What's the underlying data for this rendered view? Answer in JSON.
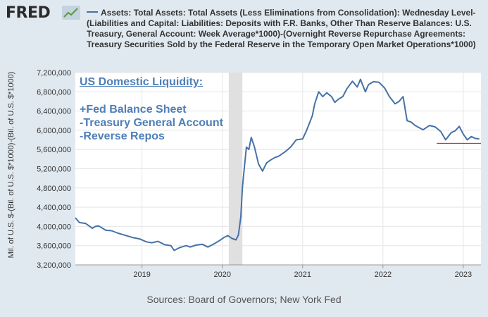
{
  "header": {
    "logo_text": "FRED",
    "logo_icon": "chart-line-icon",
    "legend_label": "Assets: Total Assets: Total Assets (Less Eliminations from Consolidation): Wednesday Level-(Liabilities and Capital: Liabilities: Deposits with F.R. Banks, Other Than Reserve Balances: U.S. Treasury, General Account: Week Average*1000)-(Overnight Reverse Repurchase Agreements: Treasury Securities Sold by the Federal Reserve in the Temporary Open Market Operations*1000)"
  },
  "annotations": {
    "title": "US Domestic Liquidity:",
    "line1": "+Fed Balance Sheet",
    "line2": "-Treasury General Account",
    "line3": "-Reverse Repos"
  },
  "footer": {
    "sources": "Sources: Board of Governors; New York Fed"
  },
  "colors": {
    "series": "#4572a7",
    "recession": "#e0e0e0",
    "reference_line": "#cc0000",
    "annotation": "#4e7fb8"
  },
  "chart_data": {
    "type": "line",
    "ylabel": "Mil. of U.S. $-(Bil. of U.S. $*1000)-(Bil. of U.S. $*1000)",
    "xlim": [
      2018.17,
      2023.22
    ],
    "ylim": [
      3200000,
      7200000
    ],
    "yticks": [
      3200000,
      3600000,
      4000000,
      4400000,
      4800000,
      5200000,
      5600000,
      6000000,
      6400000,
      6800000,
      7200000
    ],
    "ytick_labels": [
      "3,200,000",
      "3,600,000",
      "4,000,000",
      "4,400,000",
      "4,800,000",
      "5,200,000",
      "5,600,000",
      "6,000,000",
      "6,400,000",
      "6,800,000",
      "7,200,000"
    ],
    "xticks": [
      2019,
      2020,
      2021,
      2022,
      2023
    ],
    "xtick_labels": [
      "2019",
      "2020",
      "2021",
      "2022",
      "2023"
    ],
    "shaded_band": [
      2020.08,
      2020.25
    ],
    "reference_line": {
      "y": 5730000,
      "x_start": 2022.67,
      "x_end": 2023.22
    },
    "series": [
      {
        "x": [
          2018.17,
          2018.22,
          2018.3,
          2018.38,
          2018.42,
          2018.46,
          2018.55,
          2018.62,
          2018.7,
          2018.78,
          2018.88,
          2018.97,
          2019.05,
          2019.12,
          2019.2,
          2019.28,
          2019.36,
          2019.4,
          2019.47,
          2019.55,
          2019.6,
          2019.67,
          2019.75,
          2019.82,
          2019.9,
          2019.97,
          2020.02,
          2020.07,
          2020.12,
          2020.17,
          2020.2,
          2020.23,
          2020.25,
          2020.27,
          2020.3,
          2020.33,
          2020.36,
          2020.4,
          2020.45,
          2020.5,
          2020.55,
          2020.6,
          2020.65,
          2020.7,
          2020.78,
          2020.85,
          2020.92,
          2021.0,
          2021.05,
          2021.12,
          2021.15,
          2021.2,
          2021.25,
          2021.3,
          2021.36,
          2021.4,
          2021.45,
          2021.5,
          2021.55,
          2021.62,
          2021.68,
          2021.72,
          2021.78,
          2021.82,
          2021.88,
          2021.95,
          2022.02,
          2022.08,
          2022.15,
          2022.2,
          2022.25,
          2022.3,
          2022.35,
          2022.4,
          2022.5,
          2022.58,
          2022.65,
          2022.72,
          2022.78,
          2022.85,
          2022.9,
          2022.95,
          2023.0,
          2023.05,
          2023.1,
          2023.15,
          2023.2
        ],
        "y": [
          4180000,
          4080000,
          4060000,
          3960000,
          4000000,
          4010000,
          3920000,
          3910000,
          3860000,
          3820000,
          3770000,
          3740000,
          3680000,
          3660000,
          3690000,
          3620000,
          3600000,
          3500000,
          3560000,
          3600000,
          3570000,
          3610000,
          3630000,
          3570000,
          3640000,
          3710000,
          3770000,
          3810000,
          3750000,
          3720000,
          3820000,
          4200000,
          4800000,
          5150000,
          5650000,
          5600000,
          5850000,
          5650000,
          5300000,
          5150000,
          5320000,
          5380000,
          5430000,
          5460000,
          5550000,
          5650000,
          5800000,
          5820000,
          6000000,
          6300000,
          6550000,
          6800000,
          6700000,
          6780000,
          6700000,
          6580000,
          6650000,
          6700000,
          6860000,
          7020000,
          6900000,
          7060000,
          6800000,
          6950000,
          7010000,
          7000000,
          6880000,
          6700000,
          6550000,
          6600000,
          6700000,
          6200000,
          6170000,
          6100000,
          6010000,
          6100000,
          6070000,
          5970000,
          5800000,
          5950000,
          5990000,
          6080000,
          5920000,
          5800000,
          5870000,
          5830000,
          5820000
        ]
      }
    ]
  }
}
